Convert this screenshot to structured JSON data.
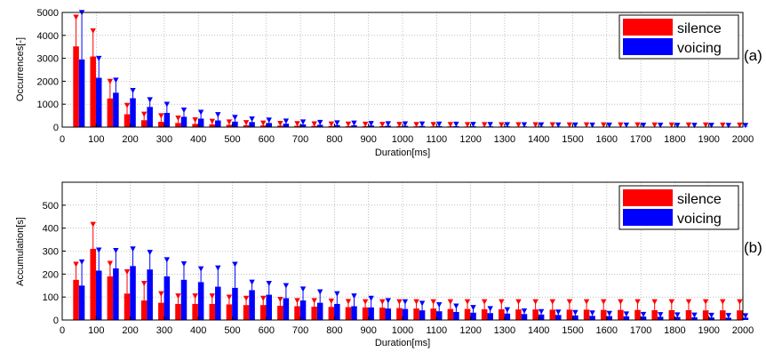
{
  "colors": {
    "silence": "#ff0000",
    "voicing": "#0000ff",
    "grid": "#999999",
    "axis": "#000000"
  },
  "chart_data": [
    {
      "type": "bar",
      "panel_label": "(a)",
      "xlabel": "Duration[ms]",
      "ylabel": "Occurrences[-]",
      "xlim": [
        0,
        2000
      ],
      "ylim": [
        0,
        5000
      ],
      "xticks": [
        "0",
        "100",
        "200",
        "300",
        "400",
        "500",
        "600",
        "700",
        "800",
        "900",
        "1000",
        "1100",
        "1200",
        "1300",
        "1400",
        "1500",
        "1600",
        "1700",
        "1800",
        "1900",
        "2000"
      ],
      "yticks": [
        "0",
        "1000",
        "2000",
        "3000",
        "4000",
        "5000"
      ],
      "grid": true,
      "legend_position": "top-right",
      "x": [
        50,
        100,
        150,
        200,
        250,
        300,
        350,
        400,
        450,
        500,
        550,
        600,
        650,
        700,
        750,
        800,
        850,
        900,
        950,
        1000,
        1050,
        1100,
        1150,
        1200,
        1250,
        1300,
        1350,
        1400,
        1450,
        1500,
        1550,
        1600,
        1650,
        1700,
        1750,
        1800,
        1850,
        1900,
        1950,
        2000
      ],
      "series": [
        {
          "name": "silence",
          "values": [
            3520,
            3080,
            1250,
            560,
            300,
            230,
            180,
            140,
            120,
            100,
            85,
            75,
            65,
            60,
            55,
            50,
            45,
            42,
            40,
            38,
            35,
            33,
            32,
            30,
            28,
            27,
            26,
            25,
            24,
            23,
            22,
            21,
            20,
            20,
            19,
            18,
            18,
            17,
            17,
            16
          ],
          "error_upper": [
            4750,
            4150,
            1950,
            900,
            520,
            450,
            350,
            270,
            210,
            180,
            150,
            130,
            115,
            105,
            95,
            90,
            85,
            80,
            75,
            72,
            70,
            68,
            66,
            64,
            62,
            60,
            58,
            57,
            56,
            55,
            54,
            53,
            52,
            51,
            50,
            49,
            48,
            47,
            46,
            45
          ]
        },
        {
          "name": "voicing",
          "values": [
            2950,
            2150,
            1500,
            1260,
            880,
            620,
            450,
            370,
            290,
            240,
            220,
            180,
            150,
            120,
            100,
            90,
            80,
            70,
            60,
            55,
            50,
            45,
            40,
            38,
            35,
            32,
            30,
            28,
            26,
            24,
            22,
            20,
            19,
            18,
            17,
            16,
            15,
            14,
            13,
            12
          ],
          "error_upper": [
            4950,
            2950,
            2000,
            1550,
            1150,
            950,
            700,
            600,
            500,
            380,
            310,
            260,
            220,
            180,
            160,
            140,
            130,
            110,
            100,
            95,
            90,
            85,
            80,
            75,
            70,
            65,
            60,
            55,
            50,
            48,
            46,
            44,
            42,
            40,
            38,
            36,
            34,
            32,
            30,
            28
          ]
        }
      ]
    },
    {
      "type": "bar",
      "panel_label": "(b)",
      "xlabel": "Duration[ms]",
      "ylabel": "Accumulation[s]",
      "xlim": [
        0,
        2000
      ],
      "ylim": [
        0,
        600
      ],
      "xticks": [
        "0",
        "100",
        "200",
        "300",
        "400",
        "500",
        "600",
        "700",
        "800",
        "900",
        "1000",
        "1100",
        "1200",
        "1300",
        "1400",
        "1500",
        "1600",
        "1700",
        "1800",
        "1900",
        "2000"
      ],
      "yticks": [
        "0",
        "100",
        "200",
        "300",
        "400",
        "500"
      ],
      "grid": true,
      "legend_position": "top-right",
      "x": [
        50,
        100,
        150,
        200,
        250,
        300,
        350,
        400,
        450,
        500,
        550,
        600,
        650,
        700,
        750,
        800,
        850,
        900,
        950,
        1000,
        1050,
        1100,
        1150,
        1200,
        1250,
        1300,
        1350,
        1400,
        1450,
        1500,
        1550,
        1600,
        1650,
        1700,
        1750,
        1800,
        1850,
        1900,
        1950,
        2000
      ],
      "series": [
        {
          "name": "silence",
          "values": [
            175,
            310,
            190,
            115,
            85,
            75,
            70,
            70,
            70,
            68,
            65,
            65,
            62,
            60,
            58,
            57,
            56,
            55,
            54,
            52,
            50,
            50,
            48,
            48,
            47,
            47,
            46,
            46,
            45,
            45,
            45,
            44,
            44,
            44,
            43,
            43,
            43,
            42,
            42,
            42
          ],
          "error_upper": [
            238,
            412,
            242,
            205,
            155,
            110,
            100,
            100,
            100,
            95,
            90,
            90,
            85,
            80,
            80,
            78,
            76,
            75,
            75,
            75,
            75,
            75,
            75,
            75,
            75,
            75,
            75,
            75,
            75,
            75,
            75,
            75,
            75,
            75,
            75,
            75,
            75,
            75,
            75,
            75
          ]
        },
        {
          "name": "voicing",
          "values": [
            150,
            215,
            225,
            235,
            220,
            190,
            175,
            165,
            145,
            140,
            130,
            110,
            95,
            85,
            75,
            70,
            60,
            55,
            50,
            48,
            42,
            38,
            35,
            32,
            30,
            28,
            26,
            24,
            22,
            20,
            18,
            17,
            16,
            15,
            14,
            13,
            12,
            11,
            10,
            10
          ],
          "error_upper": [
            248,
            300,
            298,
            305,
            290,
            258,
            240,
            218,
            222,
            238,
            160,
            155,
            145,
            130,
            118,
            110,
            100,
            90,
            80,
            75,
            68,
            62,
            56,
            50,
            45,
            40,
            35,
            32,
            30,
            28,
            26,
            24,
            22,
            20,
            19,
            18,
            17,
            16,
            15,
            14
          ]
        }
      ]
    }
  ]
}
